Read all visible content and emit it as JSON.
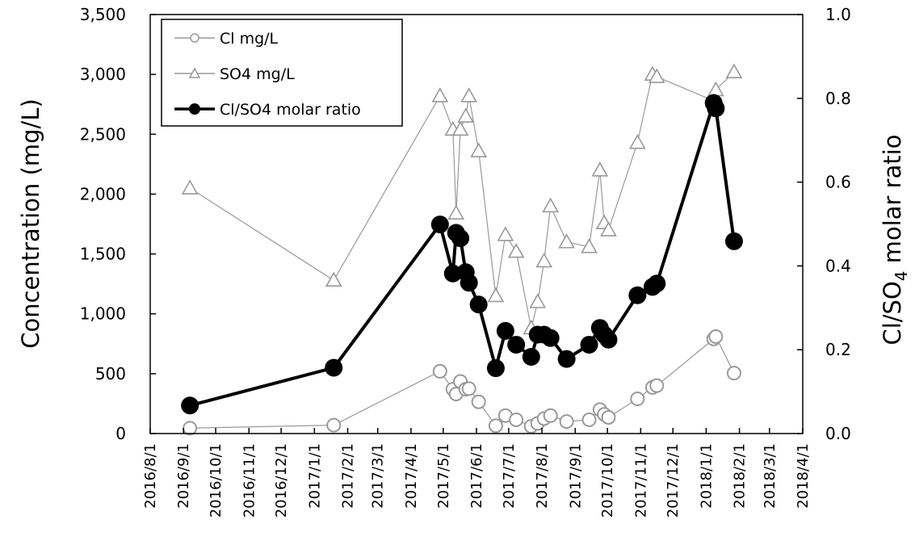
{
  "chart_data": {
    "type": "line",
    "title": "",
    "x_axis": {
      "type": "date",
      "range": [
        "2016-08-01",
        "2018-04-01"
      ],
      "tick_labels": [
        "2016/8/1",
        "2016/9/1",
        "2016/10/1",
        "2016/11/1",
        "2016/12/1",
        "2017/1/1",
        "2017/2/1",
        "2017/3/1",
        "2017/4/1",
        "2017/5/1",
        "2017/6/1",
        "2017/7/1",
        "2017/8/1",
        "2017/9/1",
        "2017/10/1",
        "2017/11/1",
        "2017/12/1",
        "2018/1/1",
        "2018/2/1",
        "2018/3/1",
        "2018/4/1"
      ],
      "tick_dates": [
        "2016-08-01",
        "2016-09-01",
        "2016-10-01",
        "2016-11-01",
        "2016-12-01",
        "2017-01-01",
        "2017-02-01",
        "2017-03-01",
        "2017-04-01",
        "2017-05-01",
        "2017-06-01",
        "2017-07-01",
        "2017-08-01",
        "2017-09-01",
        "2017-10-01",
        "2017-11-01",
        "2017-12-01",
        "2018-01-01",
        "2018-02-01",
        "2018-03-01",
        "2018-04-01"
      ]
    },
    "y_left": {
      "label": "Concentration (mg/L)",
      "range": [
        0,
        3500
      ],
      "tick_labels": [
        "0",
        "500",
        "1,000",
        "1,500",
        "2,000",
        "2,500",
        "3,000",
        "3,500"
      ],
      "tick_values": [
        0,
        500,
        1000,
        1500,
        2000,
        2500,
        3000,
        3500
      ]
    },
    "y_right": {
      "label_main": "Cl/SO",
      "label_sub": "4",
      "label_tail": " molar ratio",
      "range": [
        0,
        1.0
      ],
      "tick_labels": [
        "0.0",
        "0.2",
        "0.4",
        "0.6",
        "0.8",
        "1.0"
      ],
      "tick_values": [
        0,
        0.2,
        0.4,
        0.6,
        0.8,
        1.0
      ]
    },
    "legend_position": "top-left",
    "grid": false,
    "series": [
      {
        "name": "Cl mg/L",
        "axis": "left",
        "color": "#999999",
        "marker": "open-circle",
        "points": [
          {
            "x": "2016-09-07",
            "y": 45
          },
          {
            "x": "2017-01-19",
            "y": 70
          },
          {
            "x": "2017-04-28",
            "y": 520
          },
          {
            "x": "2017-05-10",
            "y": 370
          },
          {
            "x": "2017-05-13",
            "y": 330
          },
          {
            "x": "2017-05-17",
            "y": 435
          },
          {
            "x": "2017-05-22",
            "y": 370
          },
          {
            "x": "2017-05-25",
            "y": 375
          },
          {
            "x": "2017-06-03",
            "y": 265
          },
          {
            "x": "2017-06-19",
            "y": 65
          },
          {
            "x": "2017-06-28",
            "y": 150
          },
          {
            "x": "2017-07-08",
            "y": 115
          },
          {
            "x": "2017-07-22",
            "y": 60
          },
          {
            "x": "2017-07-28",
            "y": 85
          },
          {
            "x": "2017-08-03",
            "y": 125
          },
          {
            "x": "2017-08-09",
            "y": 150
          },
          {
            "x": "2017-08-24",
            "y": 100
          },
          {
            "x": "2017-09-14",
            "y": 115
          },
          {
            "x": "2017-09-24",
            "y": 200
          },
          {
            "x": "2017-09-28",
            "y": 160
          },
          {
            "x": "2017-10-02",
            "y": 135
          },
          {
            "x": "2017-10-29",
            "y": 290
          },
          {
            "x": "2017-11-12",
            "y": 385
          },
          {
            "x": "2017-11-16",
            "y": 400
          },
          {
            "x": "2018-01-08",
            "y": 790
          },
          {
            "x": "2018-01-10",
            "y": 810
          },
          {
            "x": "2018-01-27",
            "y": 505
          }
        ]
      },
      {
        "name": "SO4 mg/L",
        "axis": "left",
        "color": "#999999",
        "marker": "open-triangle",
        "points": [
          {
            "x": "2016-09-07",
            "y": 2050
          },
          {
            "x": "2017-01-19",
            "y": 1280
          },
          {
            "x": "2017-04-28",
            "y": 2820
          },
          {
            "x": "2017-05-10",
            "y": 2540
          },
          {
            "x": "2017-05-13",
            "y": 1840
          },
          {
            "x": "2017-05-17",
            "y": 2540
          },
          {
            "x": "2017-05-22",
            "y": 2650
          },
          {
            "x": "2017-05-25",
            "y": 2820
          },
          {
            "x": "2017-06-03",
            "y": 2360
          },
          {
            "x": "2017-06-19",
            "y": 1150
          },
          {
            "x": "2017-06-28",
            "y": 1660
          },
          {
            "x": "2017-07-08",
            "y": 1520
          },
          {
            "x": "2017-07-22",
            "y": 880
          },
          {
            "x": "2017-07-28",
            "y": 1100
          },
          {
            "x": "2017-08-03",
            "y": 1440
          },
          {
            "x": "2017-08-09",
            "y": 1900
          },
          {
            "x": "2017-08-24",
            "y": 1600
          },
          {
            "x": "2017-09-14",
            "y": 1560
          },
          {
            "x": "2017-09-24",
            "y": 2200
          },
          {
            "x": "2017-09-28",
            "y": 1760
          },
          {
            "x": "2017-10-02",
            "y": 1700
          },
          {
            "x": "2017-10-29",
            "y": 2430
          },
          {
            "x": "2017-11-12",
            "y": 3000
          },
          {
            "x": "2017-11-16",
            "y": 2980
          },
          {
            "x": "2018-01-08",
            "y": 2780
          },
          {
            "x": "2018-01-10",
            "y": 2870
          },
          {
            "x": "2018-01-27",
            "y": 3020
          }
        ]
      },
      {
        "name": "Cl/SO4 molar ratio",
        "axis": "right",
        "color": "#000000",
        "marker": "filled-circle",
        "points": [
          {
            "x": "2016-09-07",
            "y": 0.067
          },
          {
            "x": "2017-01-19",
            "y": 0.157
          },
          {
            "x": "2017-04-28",
            "y": 0.499
          },
          {
            "x": "2017-05-10",
            "y": 0.382
          },
          {
            "x": "2017-05-13",
            "y": 0.479
          },
          {
            "x": "2017-05-17",
            "y": 0.466
          },
          {
            "x": "2017-05-22",
            "y": 0.385
          },
          {
            "x": "2017-05-25",
            "y": 0.36
          },
          {
            "x": "2017-06-03",
            "y": 0.308
          },
          {
            "x": "2017-06-19",
            "y": 0.156
          },
          {
            "x": "2017-06-28",
            "y": 0.245
          },
          {
            "x": "2017-07-08",
            "y": 0.212
          },
          {
            "x": "2017-07-22",
            "y": 0.183
          },
          {
            "x": "2017-07-28",
            "y": 0.236
          },
          {
            "x": "2017-08-03",
            "y": 0.236
          },
          {
            "x": "2017-08-09",
            "y": 0.228
          },
          {
            "x": "2017-08-24",
            "y": 0.178
          },
          {
            "x": "2017-09-14",
            "y": 0.212
          },
          {
            "x": "2017-09-24",
            "y": 0.252
          },
          {
            "x": "2017-09-28",
            "y": 0.236
          },
          {
            "x": "2017-10-02",
            "y": 0.224
          },
          {
            "x": "2017-10-29",
            "y": 0.33
          },
          {
            "x": "2017-11-12",
            "y": 0.35
          },
          {
            "x": "2017-11-16",
            "y": 0.358
          },
          {
            "x": "2018-01-08",
            "y": 0.789
          },
          {
            "x": "2018-01-10",
            "y": 0.776
          },
          {
            "x": "2018-01-27",
            "y": 0.459
          }
        ]
      }
    ]
  }
}
